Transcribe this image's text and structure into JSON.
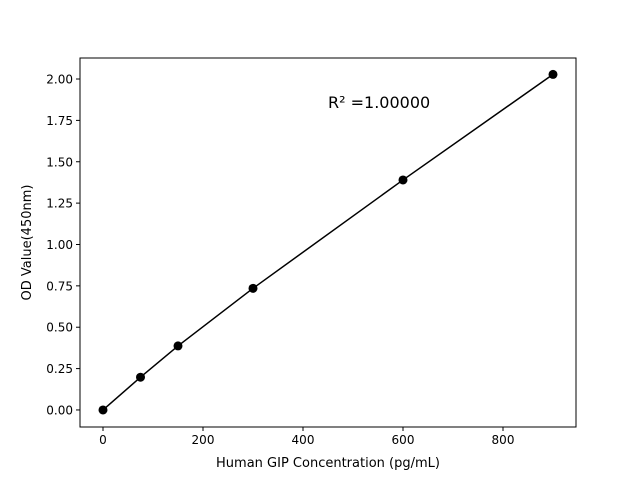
{
  "chart_data": {
    "type": "line",
    "title": "",
    "xlabel": "Human GIP Concentration (pg/mL)",
    "ylabel": "OD Value(450nm)",
    "annotation": "R² =1.00000",
    "x": [
      0,
      75,
      150,
      300,
      600,
      900
    ],
    "y": [
      0.0,
      0.198,
      0.387,
      0.735,
      1.39,
      2.028
    ],
    "xlim": [
      -46,
      946
    ],
    "ylim": [
      -0.103,
      2.127
    ],
    "xticks": [
      0,
      200,
      400,
      600,
      800
    ],
    "xtick_labels": [
      "0",
      "200",
      "400",
      "600",
      "800"
    ],
    "yticks": [
      0,
      0.25,
      0.5,
      0.75,
      1.0,
      1.25,
      1.5,
      1.75,
      2.0
    ],
    "ytick_labels": [
      "0.00",
      "0.25",
      "0.50",
      "0.75",
      "1.00",
      "1.25",
      "1.50",
      "1.75",
      "2.00"
    ],
    "grid": false,
    "line_color": "#000000",
    "marker": "circle"
  }
}
